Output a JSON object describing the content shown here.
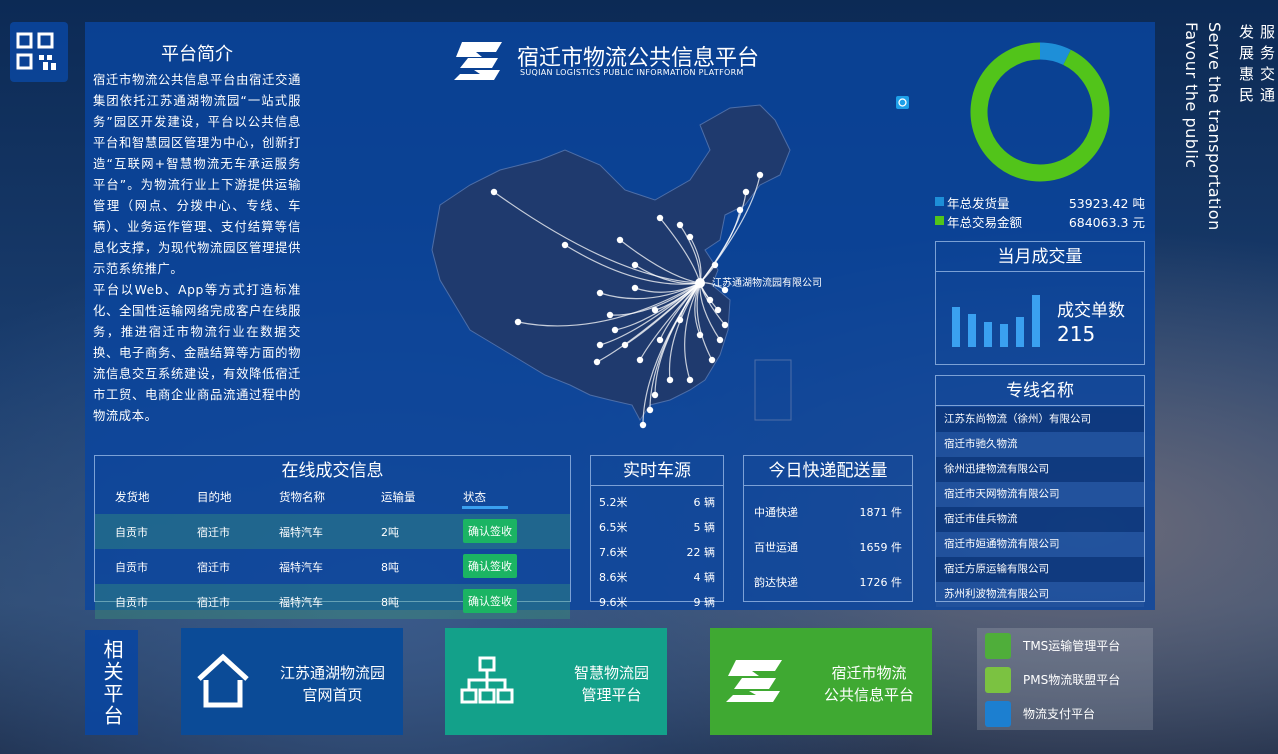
{
  "header": {
    "title": "宿迁市物流公共信息平台",
    "subtitle": "SUQIAN LOGISTICS PUBLIC INFORMATION PLATFORM"
  },
  "intro": {
    "title": "平台简介",
    "paragraphs": [
      "宿迁市物流公共信息平台由宿迁交通集团依托江苏通湖物流园“一站式服务”园区开发建设，平台以公共信息平台和智慧园区管理为中心，创新打造“互联网+智慧物流无车承运服务平台”。为物流行业上下游提供运输管理（网点、分拨中心、专线、车辆）、业务运作管理、支付结算等信息化支撑，为现代物流园区管理提供示范系统推广。",
      "平台以Web、App等方式打造标准化、全国性运输网络完成客户在线服务，推进宿迁市物流行业在数据交换、电子商务、金融结算等方面的物流信息交互系统建设，有效降低宿迁市工贸、电商企业商品流通过程中的物流成本。"
    ]
  },
  "map": {
    "hub_label": "江苏通湖物流园有限公司"
  },
  "summary": {
    "items": [
      {
        "label": "年总发货量",
        "value": 53923.42,
        "unit": "吨",
        "color": "#1e8fd8"
      },
      {
        "label": "年总交易金额",
        "value": 684063.3,
        "unit": "元",
        "color": "#52c41a"
      }
    ]
  },
  "monthly": {
    "title": "当月成交量",
    "label": "成交单数",
    "value": 215
  },
  "lines": {
    "title": "专线名称",
    "items": [
      "江苏东尚物流（徐州）有限公司",
      "宿迁市驰久物流",
      "徐州迅捷物流有限公司",
      "宿迁市天网物流有限公司",
      "宿迁市佳兵物流",
      "宿迁市姮通物流有限公司",
      "宿迁方原运输有限公司",
      "苏州利波物流有限公司"
    ]
  },
  "orders": {
    "title": "在线成交信息",
    "columns": [
      "发货地",
      "目的地",
      "货物名称",
      "运输量",
      "状态"
    ],
    "rows": [
      [
        "自贡市",
        "宿迁市",
        "福特汽车",
        "2吨",
        "确认签收"
      ],
      [
        "自贡市",
        "宿迁市",
        "福特汽车",
        "8吨",
        "确认签收"
      ],
      [
        "自贡市",
        "宿迁市",
        "福特汽车",
        "8吨",
        "确认签收"
      ]
    ]
  },
  "vehicles": {
    "title": "实时车源",
    "rows": [
      [
        "5.2米",
        "6 辆"
      ],
      [
        "6.5米",
        "5 辆"
      ],
      [
        "7.6米",
        "22 辆"
      ],
      [
        "8.6米",
        "4 辆"
      ],
      [
        "9.6米",
        "9 辆"
      ]
    ]
  },
  "express": {
    "title": "今日快递配送量",
    "rows": [
      [
        "中通快递",
        "1871 件"
      ],
      [
        "百世运通",
        "1659 件"
      ],
      [
        "韵达快递",
        "1726 件"
      ]
    ]
  },
  "slogan": {
    "cn": [
      "服务交通",
      "发展惠民"
    ],
    "en": [
      "Serve the transportation",
      "Favour the public"
    ]
  },
  "related": {
    "title": "相关平台",
    "cards": [
      [
        "江苏通湖物流园",
        "官网首页"
      ],
      [
        "智慧物流园",
        "管理平台"
      ],
      [
        "宿迁市物流",
        "公共信息平台"
      ]
    ],
    "links": [
      "TMS运输管理平台",
      "PMS物流联盟平台",
      "物流支付平台"
    ]
  }
}
